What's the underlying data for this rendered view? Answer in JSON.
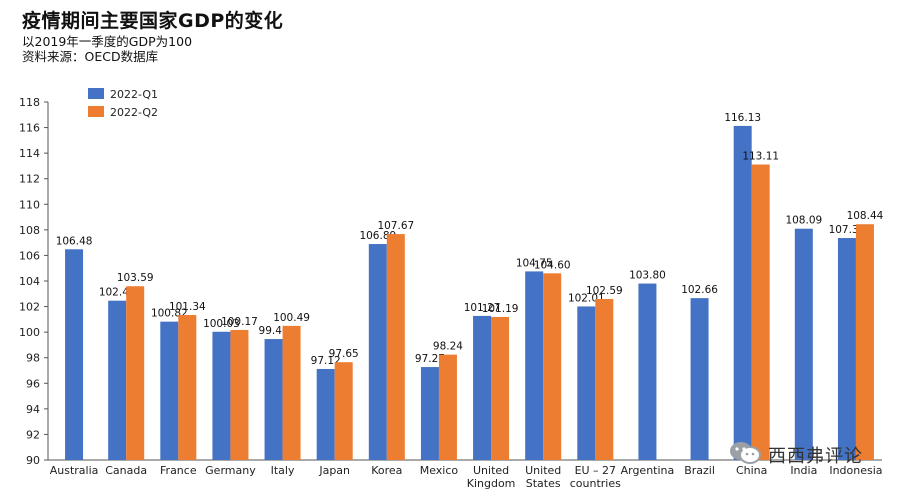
{
  "header": {
    "title": "疫情期间主要国家GDP的变化",
    "subtitle": "以2019年一季度的GDP为100",
    "source": "资料来源：OECD数据库"
  },
  "watermark": {
    "text": "西西弗评论",
    "icon": "wechat-icon"
  },
  "chart_data": {
    "type": "bar",
    "categories": [
      "Australia",
      "Canada",
      "France",
      "Germany",
      "Italy",
      "Japan",
      "Korea",
      "Mexico",
      "United Kingdom",
      "United States",
      "EU – 27 countries",
      "Argentina",
      "Brazil",
      "China",
      "India",
      "Indonesia"
    ],
    "category_lines": [
      [
        "Australia"
      ],
      [
        "Canada"
      ],
      [
        "France"
      ],
      [
        "Germany"
      ],
      [
        "Italy"
      ],
      [
        "Japan"
      ],
      [
        "Korea"
      ],
      [
        "Mexico"
      ],
      [
        "United",
        "Kingdom"
      ],
      [
        "United",
        "States"
      ],
      [
        "EU – 27",
        "countries"
      ],
      [
        "Argentina"
      ],
      [
        "Brazil"
      ],
      [
        "China"
      ],
      [
        "India"
      ],
      [
        "Indonesia"
      ]
    ],
    "series": [
      {
        "name": "2022-Q1",
        "color": "#4472c4",
        "values": [
          106.48,
          102.46,
          100.82,
          100.03,
          99.46,
          97.12,
          106.89,
          97.27,
          101.27,
          104.75,
          102.01,
          103.8,
          102.66,
          116.13,
          108.09,
          107.36
        ],
        "labels": [
          "106.48",
          "102.46",
          "100.82",
          "100.03",
          "99.46",
          "97.12",
          "106.89",
          "97.27",
          "101.27",
          "104.75",
          "102.01",
          "103.80",
          "102.66",
          "116.13",
          "108.09",
          "107.36"
        ]
      },
      {
        "name": "2022-Q2",
        "color": "#ed7d31",
        "values": [
          null,
          103.59,
          101.34,
          100.17,
          100.49,
          97.65,
          107.67,
          98.24,
          101.19,
          104.6,
          102.59,
          null,
          null,
          113.11,
          null,
          108.44
        ],
        "labels": [
          null,
          "103.59",
          "101.34",
          "100.17",
          "100.49",
          "97.65",
          "107.67",
          "98.24",
          "101.19",
          "104.60",
          "102.59",
          null,
          null,
          "113.11",
          null,
          "108.44"
        ]
      }
    ],
    "ylim": [
      90,
      118
    ],
    "yticks": [
      90,
      92,
      94,
      96,
      98,
      100,
      102,
      104,
      106,
      108,
      110,
      112,
      114,
      116,
      118
    ],
    "grid": false,
    "legend": "top-left"
  }
}
